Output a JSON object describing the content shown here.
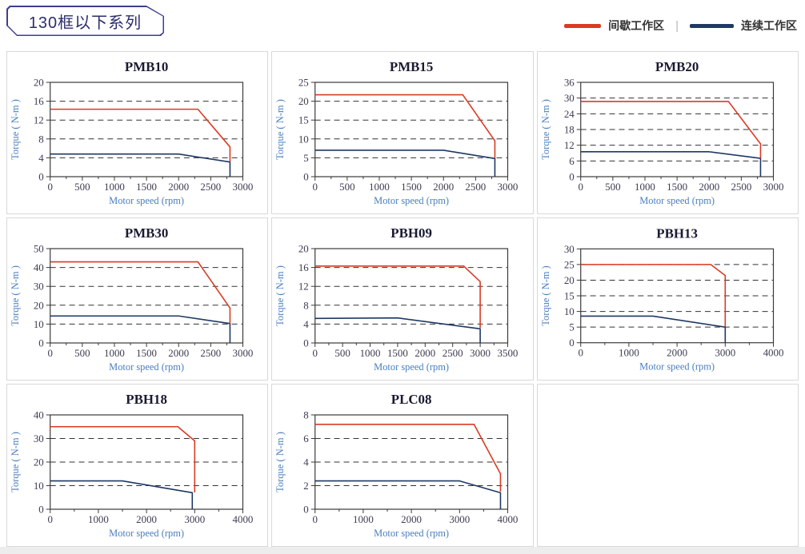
{
  "page": {
    "header_badge": "130框以下系列"
  },
  "legend": {
    "intermittent_label": "间歇工作区",
    "continuous_label": "连续工作区",
    "separator": "|",
    "intermittent_color": "#d93b22",
    "continuous_color": "#1f3864"
  },
  "colors": {
    "red_series": "#d93b22",
    "blue_series": "#1f3864",
    "frame": "#3a3a3a",
    "grid_dash": "#333333",
    "tick_text": "#3d3d52",
    "axis_label_blue": "#4a7ebf",
    "chart_title": "#1a1a33",
    "cell_border": "#d9d9d9"
  },
  "chart_data": [
    {
      "type": "line",
      "title": "PMB10",
      "xlabel": "Motor speed (rpm)",
      "ylabel": "Torque ( N-m )",
      "xlim": [
        0,
        3000
      ],
      "ylim": [
        0,
        20
      ],
      "xtick_step": 500,
      "ytick_step": 4,
      "grid": "dashed-horizontal",
      "series": [
        {
          "name": "间歇工作区",
          "color": "#d93b22",
          "points": [
            [
              0,
              14.3
            ],
            [
              2300,
              14.3
            ],
            [
              2800,
              6.3
            ],
            [
              2800,
              3.2
            ]
          ]
        },
        {
          "name": "连续工作区",
          "color": "#1f3864",
          "points": [
            [
              0,
              4.8
            ],
            [
              2000,
              4.8
            ],
            [
              2800,
              3.1
            ],
            [
              2800,
              0
            ]
          ]
        }
      ]
    },
    {
      "type": "line",
      "title": "PMB15",
      "xlabel": "Motor speed (rpm)",
      "ylabel": "Torque ( N-m )",
      "xlim": [
        0,
        3000
      ],
      "ylim": [
        0,
        25
      ],
      "xtick_step": 500,
      "ytick_step": 5,
      "grid": "dashed-horizontal",
      "series": [
        {
          "name": "间歇工作区",
          "color": "#d93b22",
          "points": [
            [
              0,
              21.7
            ],
            [
              2300,
              21.7
            ],
            [
              2800,
              9.5
            ],
            [
              2800,
              4.9
            ]
          ]
        },
        {
          "name": "连续工作区",
          "color": "#1f3864",
          "points": [
            [
              0,
              7
            ],
            [
              2000,
              7
            ],
            [
              2800,
              4.8
            ],
            [
              2800,
              0
            ]
          ]
        }
      ]
    },
    {
      "type": "line",
      "title": "PMB20",
      "xlabel": "Motor speed (rpm)",
      "ylabel": "Torque ( N-m )",
      "xlim": [
        0,
        3000
      ],
      "ylim": [
        0,
        36
      ],
      "xtick_step": 500,
      "ytick_step": 6,
      "grid": "dashed-horizontal",
      "series": [
        {
          "name": "间歇工作区",
          "color": "#d93b22",
          "points": [
            [
              0,
              28.7
            ],
            [
              2300,
              28.7
            ],
            [
              2800,
              12.5
            ],
            [
              2800,
              7.1
            ]
          ]
        },
        {
          "name": "连续工作区",
          "color": "#1f3864",
          "points": [
            [
              0,
              9.5
            ],
            [
              2000,
              9.5
            ],
            [
              2800,
              7
            ],
            [
              2800,
              0
            ]
          ]
        }
      ]
    },
    {
      "type": "line",
      "title": "PMB30",
      "xlabel": "Motor speed (rpm)",
      "ylabel": "Torque ( N-m )",
      "xlim": [
        0,
        3000
      ],
      "ylim": [
        0,
        50
      ],
      "xtick_step": 500,
      "ytick_step": 10,
      "grid": "dashed-horizontal",
      "series": [
        {
          "name": "间歇工作区",
          "color": "#d93b22",
          "points": [
            [
              0,
              43
            ],
            [
              2300,
              43
            ],
            [
              2800,
              18.5
            ],
            [
              2800,
              10.4
            ]
          ]
        },
        {
          "name": "连续工作区",
          "color": "#1f3864",
          "points": [
            [
              0,
              14.3
            ],
            [
              2000,
              14.3
            ],
            [
              2800,
              10.3
            ],
            [
              2800,
              0
            ]
          ]
        }
      ]
    },
    {
      "type": "line",
      "title": "PBH09",
      "xlabel": "Motor speed (rpm)",
      "ylabel": "Torque ( N-m )",
      "xlim": [
        0,
        3500
      ],
      "ylim": [
        0,
        20
      ],
      "xtick_step": 500,
      "ytick_step": 4,
      "grid": "dashed-horizontal",
      "series": [
        {
          "name": "间歇工作区",
          "color": "#d93b22",
          "points": [
            [
              0,
              16.3
            ],
            [
              2700,
              16.3
            ],
            [
              3000,
              13
            ],
            [
              3000,
              3.2
            ]
          ]
        },
        {
          "name": "连续工作区",
          "color": "#1f3864",
          "points": [
            [
              0,
              5.2
            ],
            [
              1500,
              5.3
            ],
            [
              3000,
              3
            ],
            [
              3000,
              0
            ]
          ]
        }
      ]
    },
    {
      "type": "line",
      "title": "PBH13",
      "xlabel": "Motor speed (rpm)",
      "ylabel": "Torque ( N-m )",
      "xlim": [
        0,
        4000
      ],
      "ylim": [
        0,
        30
      ],
      "xtick_step": 1000,
      "ytick_step": 5,
      "grid": "dashed-horizontal",
      "series": [
        {
          "name": "间歇工作区",
          "color": "#d93b22",
          "points": [
            [
              0,
              25
            ],
            [
              2700,
              25
            ],
            [
              3000,
              21.5
            ],
            [
              3000,
              5.1
            ]
          ]
        },
        {
          "name": "连续工作区",
          "color": "#1f3864",
          "points": [
            [
              0,
              8.5
            ],
            [
              1500,
              8.5
            ],
            [
              3000,
              5
            ],
            [
              3000,
              0
            ]
          ]
        }
      ]
    },
    {
      "type": "line",
      "title": "PBH18",
      "xlabel": "Motor speed (rpm)",
      "ylabel": "Torque ( N-m )",
      "xlim": [
        0,
        4000
      ],
      "ylim": [
        0,
        40
      ],
      "xtick_step": 1000,
      "ytick_step": 10,
      "grid": "dashed-horizontal",
      "series": [
        {
          "name": "间歇工作区",
          "color": "#d93b22",
          "points": [
            [
              0,
              35
            ],
            [
              2650,
              35
            ],
            [
              3000,
              29
            ],
            [
              3000,
              7.1
            ]
          ]
        },
        {
          "name": "连续工作区",
          "color": "#1f3864",
          "points": [
            [
              0,
              12
            ],
            [
              1500,
              12
            ],
            [
              2950,
              7
            ],
            [
              2950,
              0
            ]
          ]
        }
      ]
    },
    {
      "type": "line",
      "title": "PLC08",
      "xlabel": "Motor speed (rpm)",
      "ylabel": "Torque ( N-m )",
      "xlim": [
        0,
        4000
      ],
      "ylim": [
        0,
        8
      ],
      "xtick_step": 1000,
      "ytick_step": 2,
      "grid": "dashed-horizontal",
      "series": [
        {
          "name": "间歇工作区",
          "color": "#d93b22",
          "points": [
            [
              0,
              7.2
            ],
            [
              3300,
              7.2
            ],
            [
              3850,
              3
            ],
            [
              3850,
              1.5
            ]
          ]
        },
        {
          "name": "连续工作区",
          "color": "#1f3864",
          "points": [
            [
              0,
              2.4
            ],
            [
              3000,
              2.4
            ],
            [
              3850,
              1.4
            ],
            [
              3850,
              0
            ]
          ]
        }
      ]
    }
  ]
}
